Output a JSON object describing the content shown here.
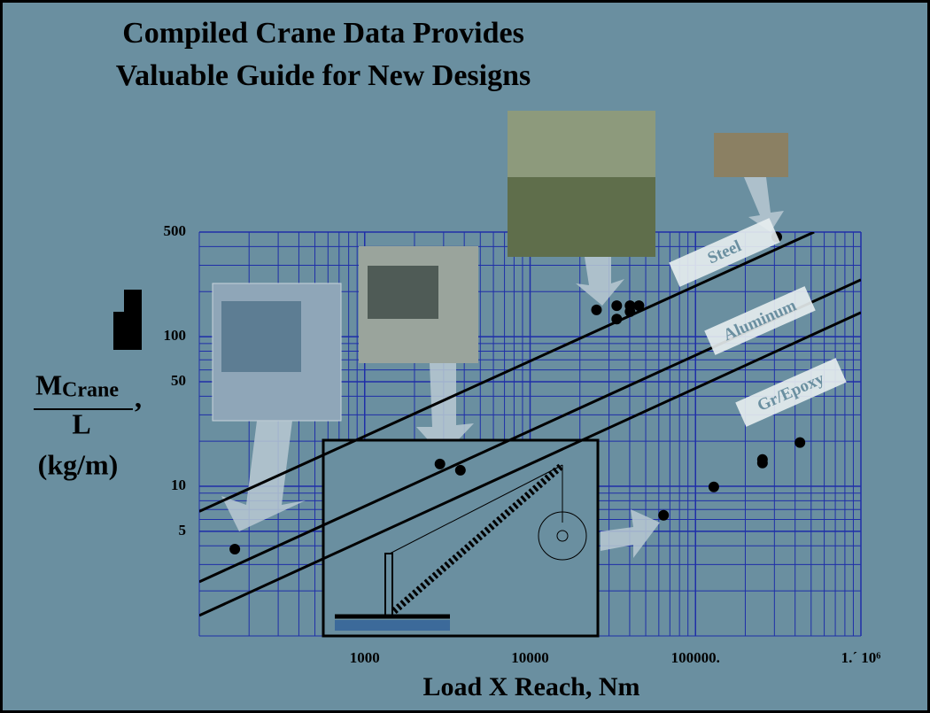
{
  "chart_data": {
    "type": "scatter",
    "title": [
      "Compiled Crane Data Provides",
      "Valuable Guide for New Designs"
    ],
    "x_label": "Load X Reach,  Nm",
    "y_label": {
      "numerator": "M",
      "subscript": "Crane",
      "suffix": ",",
      "denominator": "L",
      "units": "(kg/m)"
    },
    "log_x": true,
    "log_y": true,
    "grid": true,
    "xlim": [
      100,
      1000000
    ],
    "ylim": [
      1,
      500
    ],
    "xticks": [
      1000,
      10000,
      {
        "value": 100000,
        "label": "100000."
      },
      {
        "value": 1000000,
        "label": "1.´ 10⁶"
      }
    ],
    "yticks": [
      5,
      10,
      50,
      100,
      500
    ],
    "points": {
      "color": "#000000",
      "x": [
        164,
        2850,
        3790,
        25200,
        33400,
        33400,
        40200,
        40200,
        45500,
        64100,
        129000,
        254000,
        254000,
        310000,
        428000
      ],
      "values": [
        3.8,
        14.1,
        12.8,
        151,
        161,
        131,
        147,
        161,
        161,
        6.4,
        9.9,
        15.1,
        14.3,
        464,
        19.6
      ]
    },
    "series": [
      {
        "name": "Steel",
        "color": "#000000",
        "x": [
          100,
          521000
        ],
        "values": [
          6.8,
          500
        ]
      },
      {
        "name": "Aluminum",
        "color": "#000000",
        "x": [
          100,
          1000000
        ],
        "values": [
          2.3,
          240
        ]
      },
      {
        "name": "Gr/Epoxy",
        "color": "#000000",
        "x": [
          100,
          1000000
        ],
        "values": [
          1.37,
          145
        ]
      }
    ]
  }
}
